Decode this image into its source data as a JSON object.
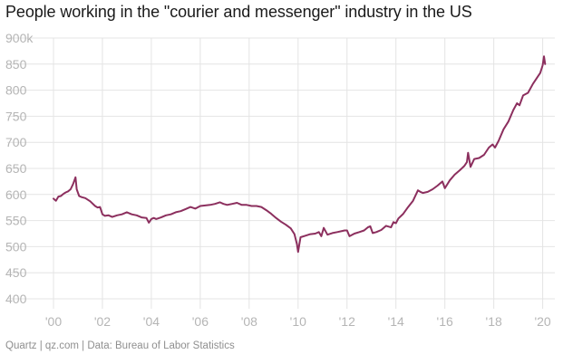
{
  "title": "People working in the \"courier and messenger\" industry in the US",
  "footer": "Quartz | qz.com | Data: Bureau of Labor Statistics",
  "colors": {
    "line": "#8c2f5e",
    "grid": "#e4e4e4",
    "tick_text": "#b5b5b5"
  },
  "chart_data": {
    "type": "line",
    "title": "People working in the \"courier and messenger\" industry in the US",
    "xlabel": "",
    "ylabel": "",
    "xlim": [
      2000,
      2020.2
    ],
    "ylim": [
      400,
      900
    ],
    "grid": true,
    "y_ticks": [
      {
        "value": 900,
        "label": "900k"
      },
      {
        "value": 850,
        "label": "850"
      },
      {
        "value": 800,
        "label": "800"
      },
      {
        "value": 750,
        "label": "750"
      },
      {
        "value": 700,
        "label": "700"
      },
      {
        "value": 650,
        "label": "650"
      },
      {
        "value": 600,
        "label": "600"
      },
      {
        "value": 550,
        "label": "550"
      },
      {
        "value": 500,
        "label": "500"
      },
      {
        "value": 450,
        "label": "450"
      },
      {
        "value": 400,
        "label": "400"
      }
    ],
    "x_ticks": [
      {
        "value": 2000,
        "label": "'00"
      },
      {
        "value": 2002,
        "label": "'02"
      },
      {
        "value": 2004,
        "label": "'04"
      },
      {
        "value": 2006,
        "label": "'06"
      },
      {
        "value": 2008,
        "label": "'08"
      },
      {
        "value": 2010,
        "label": "'10"
      },
      {
        "value": 2012,
        "label": "'12"
      },
      {
        "value": 2014,
        "label": "'14"
      },
      {
        "value": 2016,
        "label": "'16"
      },
      {
        "value": 2018,
        "label": "'18"
      },
      {
        "value": 2020,
        "label": "'20"
      }
    ],
    "series": [
      {
        "x": [
          2000.0,
          2000.1,
          2000.2,
          2000.3,
          2000.4,
          2000.5,
          2000.6,
          2000.7,
          2000.8,
          2000.9,
          2000.95,
          2001.05,
          2001.15,
          2001.3,
          2001.5,
          2001.7,
          2001.8,
          2001.9,
          2002.0,
          2002.1,
          2002.25,
          2002.4,
          2002.6,
          2002.8,
          2003.0,
          2003.2,
          2003.4,
          2003.6,
          2003.8,
          2003.9,
          2004.0,
          2004.1,
          2004.2,
          2004.4,
          2004.6,
          2004.8,
          2005.0,
          2005.2,
          2005.4,
          2005.6,
          2005.8,
          2006.0,
          2006.2,
          2006.4,
          2006.6,
          2006.8,
          2006.95,
          2007.1,
          2007.3,
          2007.5,
          2007.7,
          2007.9,
          2008.1,
          2008.3,
          2008.5,
          2008.7,
          2008.9,
          2009.1,
          2009.3,
          2009.5,
          2009.7,
          2009.85,
          2009.95,
          2010.0,
          2010.1,
          2010.3,
          2010.5,
          2010.7,
          2010.85,
          2010.95,
          2011.05,
          2011.2,
          2011.4,
          2011.6,
          2011.8,
          2011.9,
          2012.0,
          2012.1,
          2012.3,
          2012.5,
          2012.7,
          2012.85,
          2012.95,
          2013.05,
          2013.2,
          2013.4,
          2013.6,
          2013.8,
          2013.9,
          2014.0,
          2014.1,
          2014.3,
          2014.5,
          2014.7,
          2014.9,
          2015.0,
          2015.1,
          2015.3,
          2015.5,
          2015.7,
          2015.9,
          2016.0,
          2016.2,
          2016.4,
          2016.6,
          2016.8,
          2016.9,
          2016.95,
          2017.05,
          2017.2,
          2017.4,
          2017.6,
          2017.8,
          2017.95,
          2018.05,
          2018.2,
          2018.4,
          2018.6,
          2018.8,
          2018.95,
          2019.05,
          2019.2,
          2019.4,
          2019.6,
          2019.8,
          2019.9,
          2020.0,
          2020.05,
          2020.1
        ],
        "values": [
          592,
          588,
          596,
          597,
          601,
          604,
          606,
          610,
          620,
          633,
          610,
          597,
          595,
          593,
          587,
          578,
          575,
          576,
          562,
          559,
          560,
          557,
          560,
          562,
          566,
          562,
          560,
          556,
          555,
          546,
          553,
          555,
          553,
          556,
          560,
          562,
          566,
          568,
          572,
          576,
          573,
          578,
          579,
          580,
          582,
          585,
          582,
          580,
          582,
          584,
          580,
          580,
          578,
          578,
          576,
          570,
          563,
          555,
          548,
          542,
          535,
          524,
          505,
          490,
          518,
          521,
          524,
          525,
          528,
          520,
          536,
          523,
          526,
          528,
          530,
          531,
          531,
          520,
          525,
          528,
          531,
          537,
          539,
          526,
          528,
          532,
          540,
          537,
          547,
          545,
          554,
          563,
          576,
          588,
          608,
          605,
          603,
          605,
          610,
          617,
          625,
          612,
          627,
          638,
          646,
          655,
          662,
          680,
          653,
          668,
          670,
          676,
          690,
          696,
          690,
          703,
          725,
          740,
          762,
          775,
          771,
          790,
          795,
          812,
          826,
          833,
          848,
          865,
          850
        ]
      }
    ]
  }
}
